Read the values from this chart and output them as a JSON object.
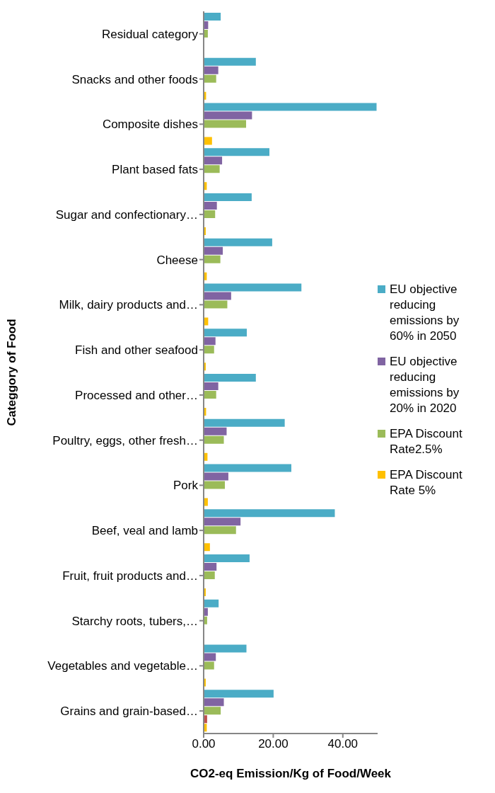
{
  "chart_data": {
    "type": "bar",
    "orientation": "horizontal",
    "xlabel": "CO2-eq Emission/Kg of  Food/Week",
    "ylabel": "Categgory of Food",
    "categories": [
      "Residual category",
      "Snacks and other foods",
      "Composite dishes",
      "Plant based fats",
      "Sugar and confectionary…",
      "Cheese",
      "Milk, dairy products and…",
      "Fish and other seafood",
      "Processed and other…",
      "Poultry, eggs, other fresh…",
      "Pork",
      "Beef, veal and lamb",
      "Fruit, fruit products and…",
      "Starchy roots, tubers,…",
      "Vegetables and vegetable…",
      "Grains and grain-based…"
    ],
    "series": [
      {
        "name": "EU objective reducing emissions by 60% in 2050",
        "color": "#4bacc6",
        "values": [
          4.9,
          15.0,
          49.7,
          18.9,
          13.8,
          19.7,
          28.1,
          12.4,
          15.0,
          23.3,
          25.2,
          37.7,
          13.2,
          4.3,
          12.3,
          20.1
        ]
      },
      {
        "name": "EU objective reducing emissions by 20% in 2020",
        "color": "#8064a2",
        "values": [
          1.3,
          4.2,
          13.9,
          5.3,
          3.8,
          5.5,
          7.9,
          3.4,
          4.2,
          6.6,
          7.1,
          10.6,
          3.7,
          1.2,
          3.5,
          5.8
        ]
      },
      {
        "name": "EPA Discount Rate2.5%",
        "color": "#9bbb59",
        "values": [
          1.2,
          3.6,
          12.2,
          4.6,
          3.3,
          4.8,
          6.8,
          3.0,
          3.6,
          5.8,
          6.1,
          9.3,
          3.2,
          1.0,
          3.0,
          4.9
        ]
      },
      {
        "color": "#c0504d",
        "values": [
          null,
          null,
          null,
          null,
          null,
          null,
          null,
          null,
          null,
          null,
          null,
          null,
          null,
          null,
          null,
          1.0
        ]
      },
      {
        "name": "EPA Discount Rate 5%",
        "color": "#ffc000",
        "values": [
          null,
          0.7,
          2.4,
          0.9,
          0.6,
          0.9,
          1.3,
          0.6,
          0.7,
          1.1,
          1.2,
          1.8,
          0.6,
          null,
          0.6,
          0.9
        ]
      }
    ],
    "xlim": [
      0,
      50
    ],
    "xticks": [
      {
        "value": 0,
        "label": "0.00"
      },
      {
        "value": 20,
        "label": "20.00"
      },
      {
        "value": 40,
        "label": "40.00"
      }
    ],
    "legend": "right"
  }
}
